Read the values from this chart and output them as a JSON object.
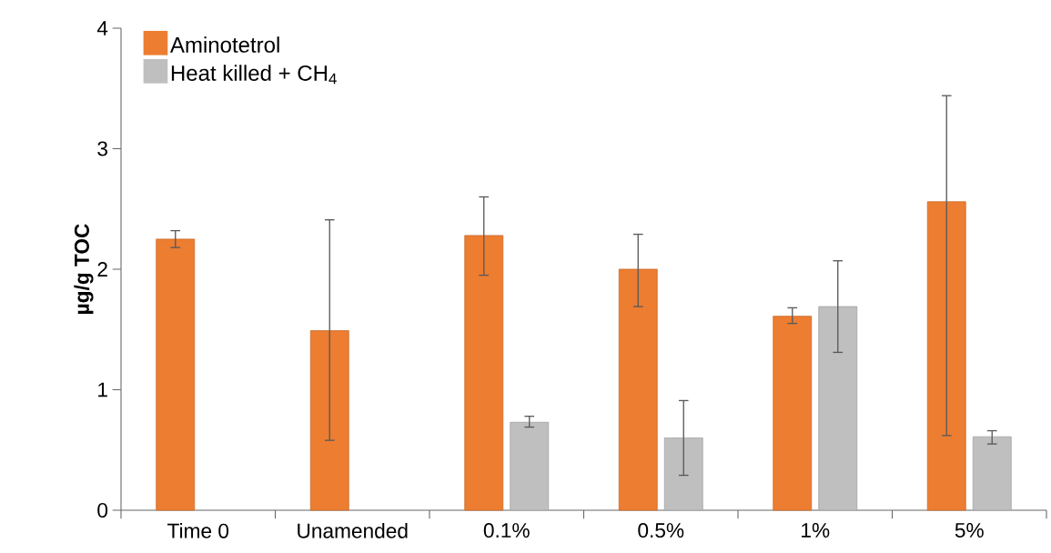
{
  "chart_data": {
    "type": "bar",
    "ylabel": "µg/g TOC",
    "categories": [
      "Time 0",
      "Unamended",
      "0.1%",
      "0.5%",
      "1%",
      "5%"
    ],
    "series": [
      {
        "name": "Aminotetrol",
        "color": "#ed7d31",
        "values": [
          2.25,
          1.49,
          2.28,
          2.0,
          1.61,
          2.56
        ],
        "errors": [
          [
            2.18,
            2.32
          ],
          [
            0.58,
            2.41
          ],
          [
            1.95,
            2.6
          ],
          [
            1.69,
            2.29
          ],
          [
            1.55,
            1.68
          ],
          [
            0.62,
            3.44
          ]
        ]
      },
      {
        "name": "Heat killed + CH$_{4}$",
        "color": "#bfbfbf",
        "values": [
          null,
          null,
          0.73,
          0.6,
          1.69,
          0.61
        ],
        "errors": [
          null,
          null,
          [
            0.69,
            0.78
          ],
          [
            0.29,
            0.91
          ],
          [
            1.31,
            2.07
          ],
          [
            0.55,
            0.66
          ]
        ]
      }
    ],
    "ylim": [
      0,
      4
    ],
    "yticks": [
      0,
      1,
      2,
      3,
      4
    ],
    "grid": false,
    "legend": "top left"
  }
}
